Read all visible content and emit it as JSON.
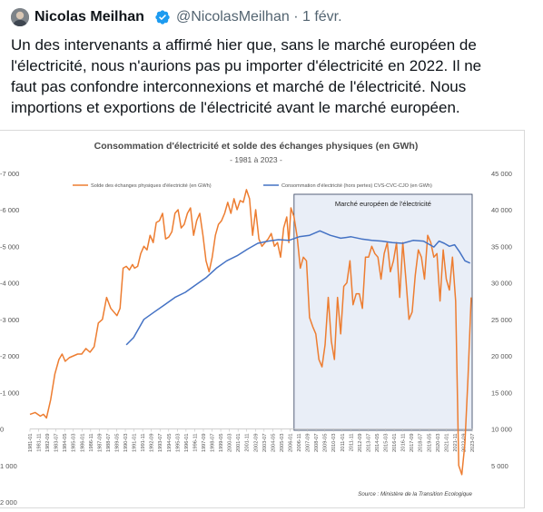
{
  "tweet": {
    "author_name": "Nicolas Meilhan",
    "handle": "@NicolasMeilhan",
    "separator": "·",
    "date": "1 févr.",
    "text_lines": [
      "Un des intervenants a affirmé hier que, sans le marché européen de",
      "l'électricité, nous n'aurions pas pu importer d'électricité en 2022. Il ne",
      "faut pas confondre interconnexions et marché de l'électricité. Nous",
      "importions et exportions de l'électricité avant le marché européen."
    ]
  },
  "colors": {
    "text_primary": "#0f1419",
    "text_secondary": "#536471",
    "verified": "#1d9bf0",
    "series_orange": "#ed7d31",
    "series_blue": "#4472c4",
    "title": "#4a4a4a",
    "box_fill": "#e9eef7",
    "box_border": "#2f3c5a"
  },
  "chart_data": {
    "type": "line",
    "title": "Consommation d'électricité et solde des échanges physiques (en GWh)",
    "subtitle": "- 1981 à 2023 -",
    "annotation": "Marché européen de l'électricité",
    "source": "Source : Ministère de la Transition Ecologique",
    "legend_position": "top",
    "left_axis": {
      "range": [
        -1000,
        7000
      ],
      "tick_labels": [
        "-7 000",
        "-6 000",
        "-5 000",
        "-4 000",
        "-3 000",
        "-2 000",
        "-1 000",
        "0",
        "1 000",
        "2 000"
      ]
    },
    "right_axis": {
      "range": [
        5000,
        45000
      ],
      "tick_labels": [
        "45 000",
        "40 000",
        "35 000",
        "30 000",
        "25 000",
        "20 000",
        "15 000",
        "10 000",
        "5 000"
      ]
    },
    "x_axis": {
      "tick_labels": [
        "1981-01",
        "1981-11",
        "1982-09",
        "1983-07",
        "1984-05",
        "1985-03",
        "1986-01",
        "1986-11",
        "1987-09",
        "1988-07",
        "1989-05",
        "1990-03",
        "1991-01",
        "1991-11",
        "1992-09",
        "1993-07",
        "1994-05",
        "1995-03",
        "1996-01",
        "1996-11",
        "1997-09",
        "1998-07",
        "1999-05",
        "2000-03",
        "2001-01",
        "2001-11",
        "2002-09",
        "2003-07",
        "2004-05",
        "2005-03",
        "2006-01",
        "2006-11",
        "2007-09",
        "2008-07",
        "2009-05",
        "2010-03",
        "2011-01",
        "2011-11",
        "2012-09",
        "2013-07",
        "2014-05",
        "2015-03",
        "2016-01",
        "2016-11",
        "2017-09",
        "2018-07",
        "2019-05",
        "2020-03",
        "2021-01",
        "2021-11",
        "2022-09",
        "2023-07"
      ]
    },
    "series": [
      {
        "name": "Solde des échanges physiques d'électricité (en GWh)",
        "axis": "left",
        "x": [
          1981.0,
          1981.5,
          1982.0,
          1982.3,
          1982.6,
          1983.0,
          1983.4,
          1983.8,
          1984.1,
          1984.4,
          1984.8,
          1985.2,
          1985.6,
          1986.0,
          1986.4,
          1986.8,
          1987.2,
          1987.6,
          1988.0,
          1988.4,
          1988.8,
          1989.1,
          1989.4,
          1989.7,
          1990.0,
          1990.3,
          1990.6,
          1990.9,
          1991.1,
          1991.4,
          1991.7,
          1992.0,
          1992.3,
          1992.6,
          1992.9,
          1993.2,
          1993.5,
          1993.8,
          1994.1,
          1994.4,
          1994.7,
          1995.0,
          1995.3,
          1995.6,
          1995.9,
          1996.2,
          1996.5,
          1996.8,
          1997.1,
          1997.4,
          1997.7,
          1998.0,
          1998.3,
          1998.6,
          1998.9,
          1999.2,
          1999.5,
          1999.8,
          2000.1,
          2000.4,
          2000.7,
          2001.0,
          2001.3,
          2001.6,
          2001.9,
          2002.2,
          2002.5,
          2002.8,
          2003.1,
          2003.4,
          2003.7,
          2004.0,
          2004.3,
          2004.6,
          2004.9,
          2005.2,
          2005.5,
          2005.8,
          2006.0,
          2006.2,
          2006.5,
          2006.8,
          2007.1,
          2007.4,
          2007.7,
          2008.0,
          2008.3,
          2008.6,
          2008.9,
          2009.2,
          2009.5,
          2009.8,
          2010.1,
          2010.4,
          2010.7,
          2011.0,
          2011.3,
          2011.6,
          2011.9,
          2012.2,
          2012.5,
          2012.8,
          2013.1,
          2013.4,
          2013.7,
          2014.0,
          2014.3,
          2014.6,
          2014.9,
          2015.2,
          2015.5,
          2015.8,
          2016.1,
          2016.4,
          2016.7,
          2017.0,
          2017.3,
          2017.6,
          2017.9,
          2018.2,
          2018.5,
          2018.8,
          2019.1,
          2019.4,
          2019.7,
          2020.0,
          2020.3,
          2020.6,
          2020.9,
          2021.2,
          2021.5,
          2021.8,
          2022.1,
          2022.4,
          2022.7,
          2023.0,
          2023.3,
          2023.6
        ],
        "y": [
          400,
          450,
          350,
          400,
          300,
          800,
          1500,
          1900,
          2050,
          1850,
          1950,
          2000,
          2050,
          2050,
          2200,
          2100,
          2250,
          2900,
          3000,
          3600,
          3300,
          3200,
          3100,
          3300,
          4400,
          4450,
          4350,
          4500,
          4400,
          4450,
          4800,
          5000,
          4900,
          5300,
          5100,
          5650,
          5700,
          5900,
          5200,
          5250,
          5400,
          5900,
          6000,
          5500,
          5600,
          5900,
          6050,
          5300,
          5700,
          5900,
          5300,
          4600,
          4300,
          4700,
          5300,
          5600,
          5700,
          5900,
          6200,
          5900,
          6300,
          6000,
          6250,
          6200,
          6550,
          6300,
          5300,
          6000,
          5200,
          5000,
          5100,
          5200,
          5350,
          5000,
          5100,
          4700,
          5500,
          5800,
          5100,
          6050,
          5800,
          5250,
          4400,
          4700,
          4600,
          3050,
          2800,
          2600,
          1900,
          1700,
          2300,
          3600,
          2400,
          1900,
          3600,
          2600,
          3900,
          4000,
          4600,
          3400,
          3700,
          3700,
          3300,
          4700,
          4700,
          5000,
          4800,
          4700,
          4100,
          4800,
          5100,
          4300,
          4600,
          5100,
          3600,
          5100,
          4100,
          3000,
          3200,
          4200,
          4900,
          4700,
          4100,
          5300,
          5100,
          4700,
          4800,
          3500,
          4900,
          4100,
          3800,
          4700,
          3500,
          -1000,
          -1250,
          -400,
          1400,
          3600
        ]
      },
      {
        "name": "Consommation d'électricité (hors pertes) CVS-CVC-CJO (en GWh)",
        "axis": "right",
        "x": [
          1990.3,
          1991.0,
          1992.0,
          1993.0,
          1994.0,
          1995.0,
          1996.0,
          1997.0,
          1998.0,
          1999.0,
          2000.0,
          2001.0,
          2002.0,
          2003.0,
          2004.0,
          2005.0,
          2006.0,
          2007.0,
          2008.0,
          2009.0,
          2010.0,
          2011.0,
          2012.0,
          2013.0,
          2014.0,
          2015.0,
          2016.0,
          2017.0,
          2018.0,
          2019.0,
          2020.0,
          2020.5,
          2021.0,
          2021.5,
          2022.0,
          2022.5,
          2023.0,
          2023.5
        ],
        "y": [
          21500,
          22500,
          25000,
          26000,
          27000,
          28000,
          28700,
          29700,
          30700,
          32000,
          33000,
          33700,
          34600,
          35400,
          35700,
          35900,
          35800,
          36300,
          36500,
          37100,
          36500,
          36100,
          36300,
          36000,
          35800,
          35700,
          35500,
          35400,
          35800,
          35700,
          34900,
          35700,
          35400,
          35000,
          35200,
          34200,
          33000,
          32700
        ]
      }
    ],
    "annotation_range": [
      2006.5,
      2023.7
    ]
  }
}
